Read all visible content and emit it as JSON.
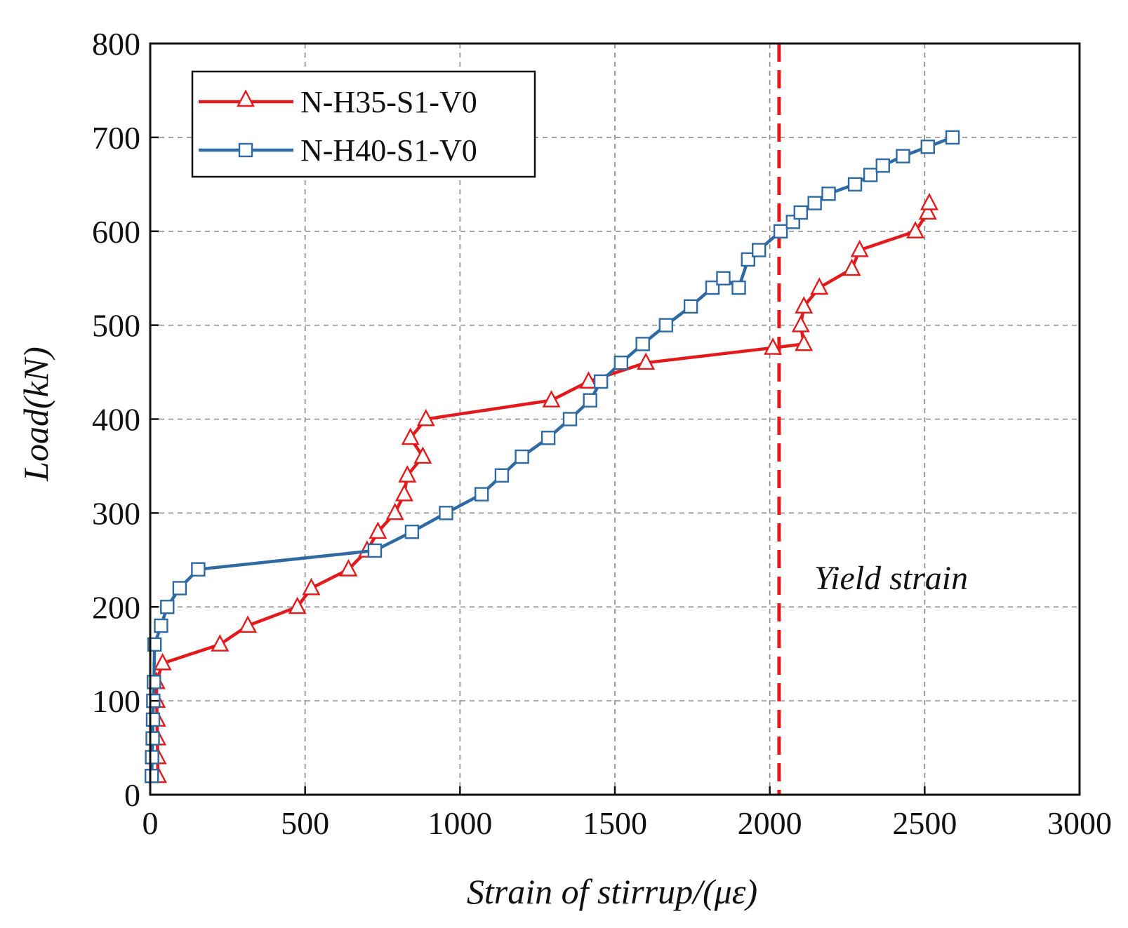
{
  "chart_data": {
    "type": "line",
    "xlabel": "Strain of stirrup/(με)",
    "ylabel": "Load(kN)",
    "xlim": [
      0,
      3000
    ],
    "ylim": [
      0,
      800
    ],
    "xticks": [
      0,
      500,
      1000,
      1500,
      2000,
      2500,
      3000
    ],
    "yticks": [
      0,
      100,
      200,
      300,
      400,
      500,
      600,
      700,
      800
    ],
    "grid": true,
    "legend_position": "top-left",
    "series": [
      {
        "name": "N-H35-S1-V0",
        "color": "#e31a1c",
        "marker": "triangle",
        "x": [
          25,
          24,
          23,
          22,
          21,
          20,
          40,
          225,
          315,
          475,
          520,
          640,
          700,
          735,
          790,
          820,
          830,
          880,
          840,
          890,
          1295,
          1415,
          1600,
          2010,
          2110,
          2100,
          2110,
          2160,
          2265,
          2290,
          2470,
          2510,
          2515
        ],
        "y": [
          20,
          40,
          60,
          80,
          100,
          120,
          140,
          160,
          180,
          200,
          220,
          240,
          260,
          280,
          300,
          320,
          340,
          360,
          380,
          400,
          420,
          440,
          460,
          476,
          480,
          500,
          520,
          540,
          560,
          580,
          600,
          620,
          630
        ]
      },
      {
        "name": "N-H40-S1-V0",
        "color": "#2f6aa3",
        "marker": "square",
        "x": [
          5,
          6,
          8,
          9,
          10,
          12,
          14,
          35,
          55,
          95,
          155,
          725,
          845,
          955,
          1070,
          1135,
          1200,
          1285,
          1355,
          1420,
          1455,
          1520,
          1590,
          1665,
          1745,
          1815,
          1850,
          1900,
          1930,
          1965,
          2035,
          2075,
          2100,
          2145,
          2190,
          2275,
          2325,
          2365,
          2430,
          2510,
          2590
        ],
        "y": [
          20,
          40,
          60,
          80,
          100,
          120,
          160,
          180,
          200,
          220,
          240,
          260,
          280,
          300,
          320,
          340,
          360,
          380,
          400,
          420,
          440,
          460,
          480,
          500,
          520,
          540,
          550,
          540,
          570,
          580,
          600,
          610,
          620,
          630,
          640,
          650,
          660,
          670,
          680,
          690,
          700
        ]
      }
    ],
    "reference_lines": [
      {
        "orientation": "vertical",
        "x": 2030,
        "color": "#e31a1c",
        "style": "dashed",
        "label": "Yield strain"
      }
    ]
  }
}
